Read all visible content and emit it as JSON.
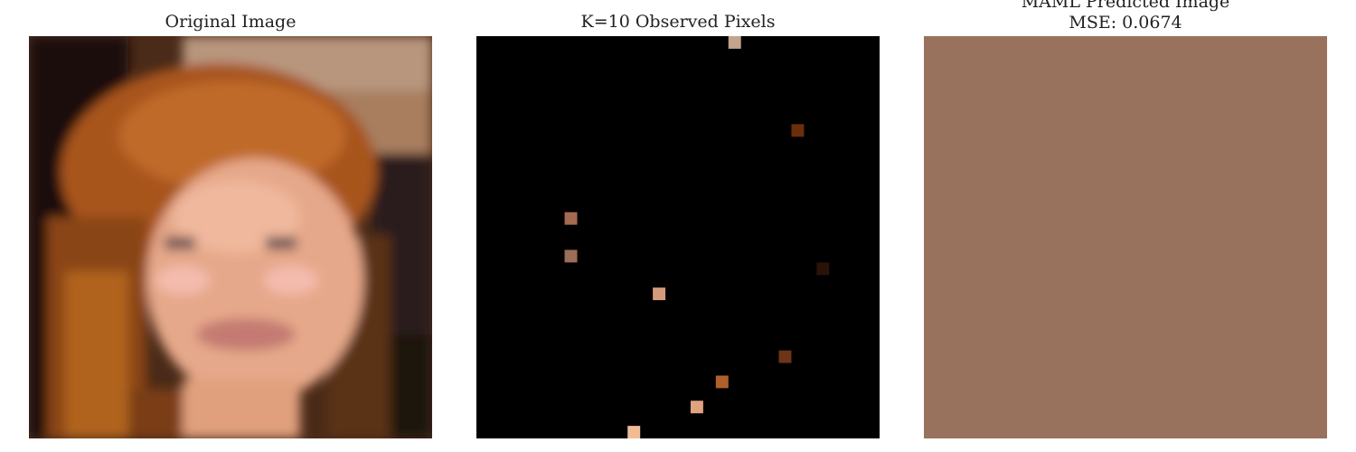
{
  "panels": {
    "original": {
      "title": "Original Image"
    },
    "observed": {
      "title": "K=10 Observed Pixels"
    },
    "predicted": {
      "title_line1": "MAML Predicted Image",
      "title_line2": "MSE: 0.0674"
    }
  },
  "grid": {
    "cols": 32,
    "rows": 32
  },
  "observed_pixels": [
    {
      "col": 20,
      "row": 0,
      "color": "#c4a48e"
    },
    {
      "col": 25,
      "row": 7,
      "color": "#6b2e0c"
    },
    {
      "col": 7,
      "row": 14,
      "color": "#a56a52"
    },
    {
      "col": 7,
      "row": 17,
      "color": "#9b6e58"
    },
    {
      "col": 27,
      "row": 18,
      "color": "#2b1208"
    },
    {
      "col": 14,
      "row": 20,
      "color": "#d59a7c"
    },
    {
      "col": 24,
      "row": 25,
      "color": "#6e3418"
    },
    {
      "col": 19,
      "row": 27,
      "color": "#b0602c"
    },
    {
      "col": 17,
      "row": 29,
      "color": "#e0a380"
    },
    {
      "col": 12,
      "row": 31,
      "color": "#f0bc98"
    }
  ],
  "colors": {
    "observed_background": "#000000",
    "predicted_fill": "#98725d"
  }
}
